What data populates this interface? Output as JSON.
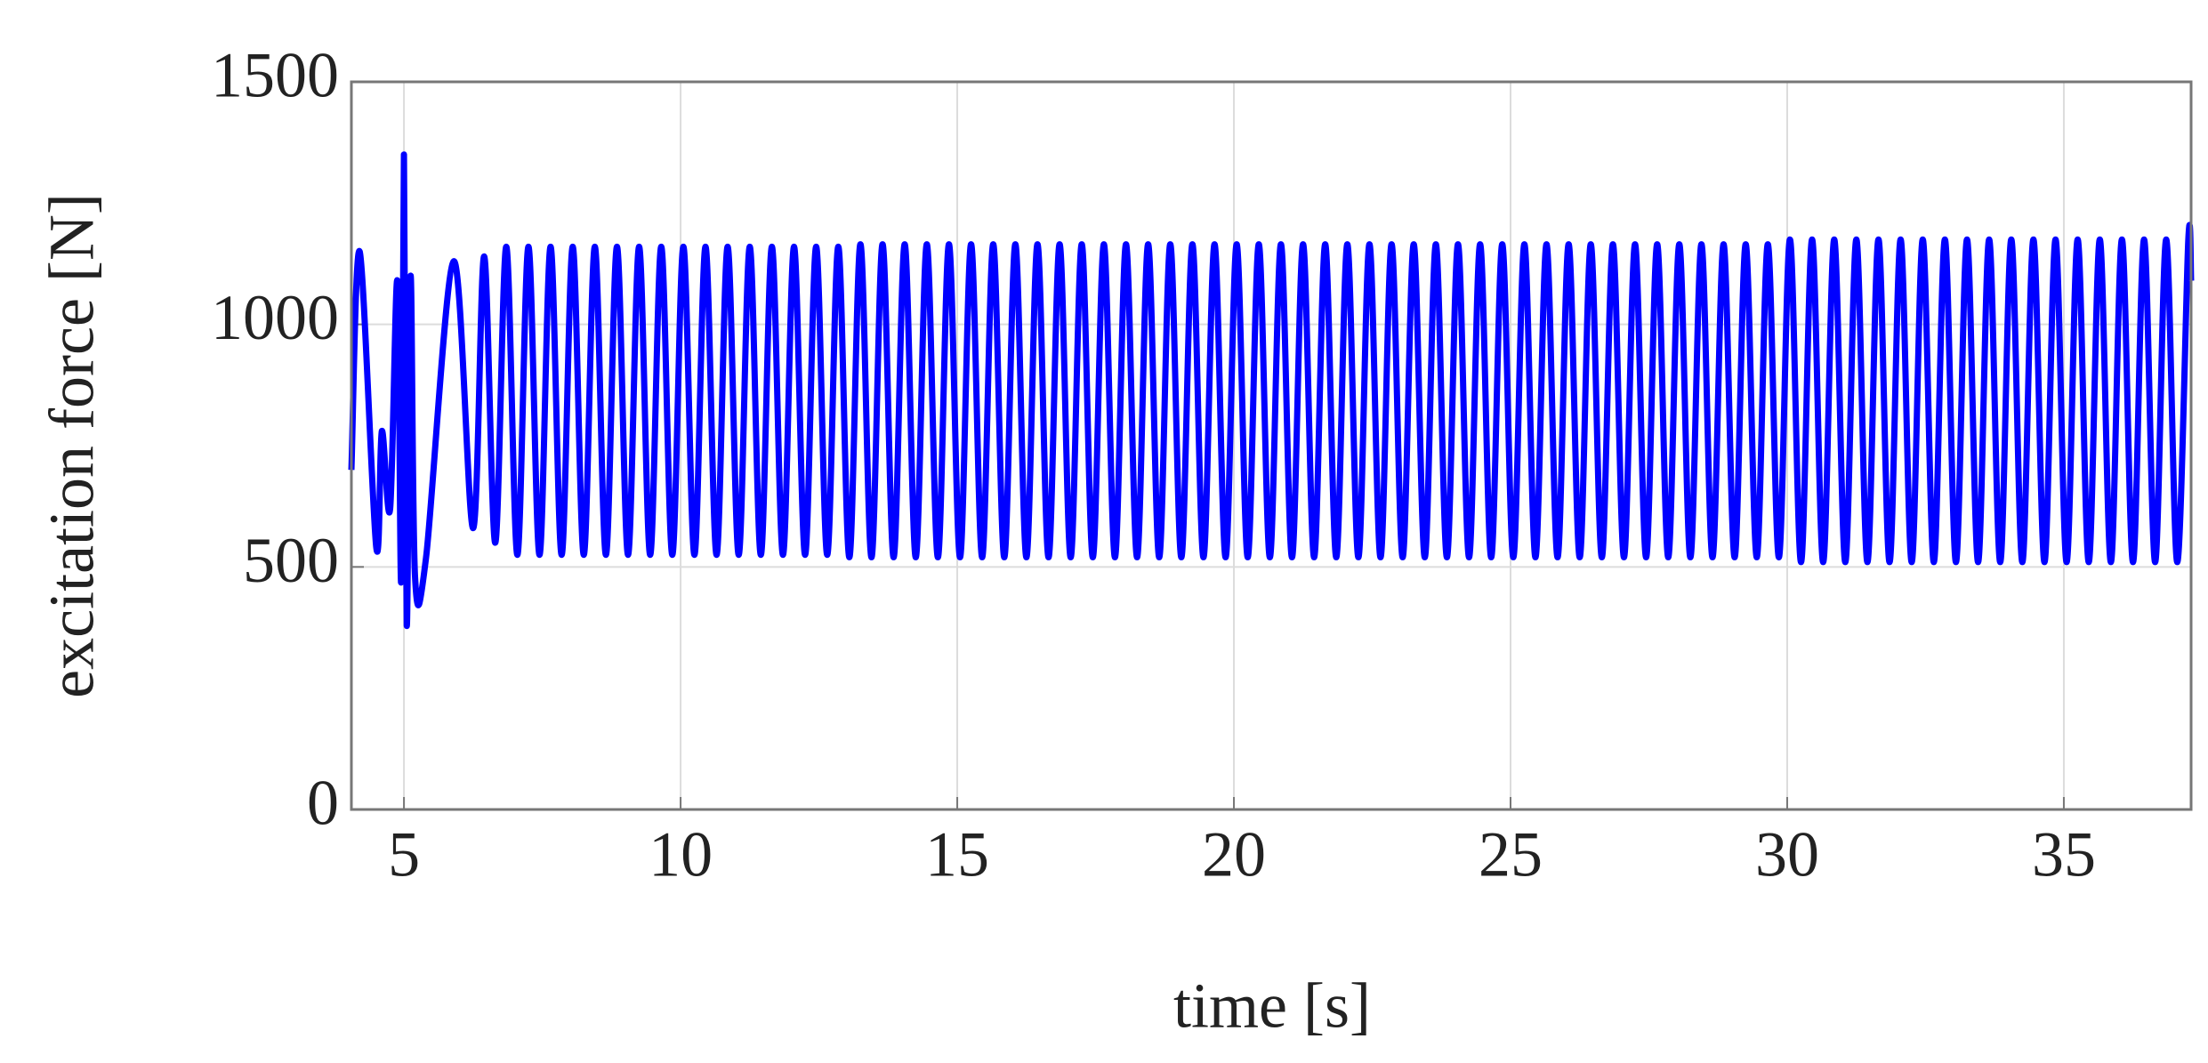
{
  "chart_data": {
    "type": "line",
    "xlabel": "time [s]",
    "ylabel": "excitation force [N]",
    "color": "#0000ff",
    "grid": true,
    "xlim": [
      4.05,
      37.3
    ],
    "ylim": [
      0,
      1500
    ],
    "xticks": [
      5,
      10,
      15,
      20,
      25,
      30,
      35
    ],
    "yticks": [
      0,
      500,
      1000,
      1500
    ],
    "x": [
      4.05,
      4.2,
      4.5,
      4.6,
      4.75,
      4.88,
      4.95,
      5.0,
      5.05,
      5.12,
      5.2,
      5.4,
      5.9,
      6.25,
      6.45,
      6.65,
      6.85,
      7.05,
      7.25,
      7.45,
      7.65,
      7.85,
      8.05,
      8.25,
      8.45,
      8.65,
      8.85,
      9.05,
      9.25,
      9.45,
      9.65,
      9.85,
      10.05,
      10.25,
      10.45,
      10.65,
      10.85,
      11.05,
      11.25,
      11.45,
      11.65,
      11.85,
      12.05,
      12.25,
      12.45,
      12.65,
      12.85,
      13.05,
      13.25,
      13.45,
      13.65,
      13.85,
      14.05,
      14.25,
      14.45,
      14.65,
      14.85,
      15.05,
      15.25,
      15.45,
      15.65,
      15.85,
      16.05,
      16.25,
      16.45,
      16.65,
      16.85,
      17.05,
      17.25,
      17.45,
      17.65,
      17.85,
      18.05,
      18.25,
      18.45,
      18.65,
      18.85,
      19.05,
      19.25,
      19.45,
      19.65,
      19.85,
      20.05,
      20.25,
      20.45,
      20.65,
      20.85,
      21.05,
      21.25,
      21.45,
      21.65,
      21.85,
      22.05,
      22.25,
      22.45,
      22.65,
      22.85,
      23.05,
      23.25,
      23.45,
      23.65,
      23.85,
      24.05,
      24.25,
      24.45,
      24.65,
      24.85,
      25.05,
      25.25,
      25.45,
      25.65,
      25.85,
      26.05,
      26.25,
      26.45,
      26.65,
      26.85,
      27.05,
      27.25,
      27.45,
      27.65,
      27.85,
      28.05,
      28.25,
      28.45,
      28.65,
      28.85,
      29.05,
      29.25,
      29.45,
      29.65,
      29.85,
      30.05,
      30.25,
      30.45,
      30.65,
      30.85,
      31.05,
      31.25,
      31.45,
      31.65,
      31.85,
      32.05,
      32.25,
      32.45,
      32.65,
      32.85,
      33.05,
      33.25,
      33.45,
      33.65,
      33.85,
      34.05,
      34.25,
      34.45,
      34.65,
      34.85,
      35.05,
      35.25,
      35.45,
      35.65,
      35.85,
      36.05,
      36.25,
      36.45,
      36.65,
      36.85,
      37.05,
      37.25,
      37.3
    ],
    "values": [
      700,
      1150,
      540,
      780,
      620,
      1090,
      470,
      1350,
      380,
      1100,
      480,
      520,
      1130,
      580,
      1140,
      550,
      1160,
      525,
      1160,
      525,
      1160,
      525,
      1160,
      525,
      1160,
      525,
      1160,
      525,
      1160,
      525,
      1160,
      525,
      1160,
      525,
      1160,
      525,
      1160,
      525,
      1160,
      525,
      1160,
      525,
      1160,
      525,
      1160,
      525,
      1160,
      520,
      1165,
      520,
      1165,
      520,
      1165,
      520,
      1165,
      520,
      1165,
      520,
      1165,
      520,
      1165,
      520,
      1165,
      520,
      1165,
      520,
      1165,
      520,
      1165,
      520,
      1165,
      520,
      1165,
      520,
      1165,
      520,
      1165,
      520,
      1165,
      520,
      1165,
      520,
      1165,
      520,
      1165,
      520,
      1165,
      520,
      1165,
      520,
      1165,
      520,
      1165,
      520,
      1165,
      520,
      1165,
      520,
      1165,
      520,
      1165,
      520,
      1165,
      520,
      1165,
      520,
      1165,
      520,
      1165,
      520,
      1165,
      520,
      1165,
      520,
      1165,
      520,
      1165,
      520,
      1165,
      520,
      1165,
      520,
      1165,
      520,
      1165,
      520,
      1165,
      520,
      1165,
      520,
      1165,
      520,
      1175,
      510,
      1175,
      510,
      1175,
      510,
      1175,
      510,
      1175,
      510,
      1175,
      510,
      1175,
      510,
      1175,
      510,
      1175,
      510,
      1175,
      510,
      1175,
      510,
      1175,
      510,
      1175,
      510,
      1175,
      510,
      1175,
      510,
      1175,
      510,
      1175,
      510,
      1175,
      510,
      1175,
      1090
    ]
  }
}
